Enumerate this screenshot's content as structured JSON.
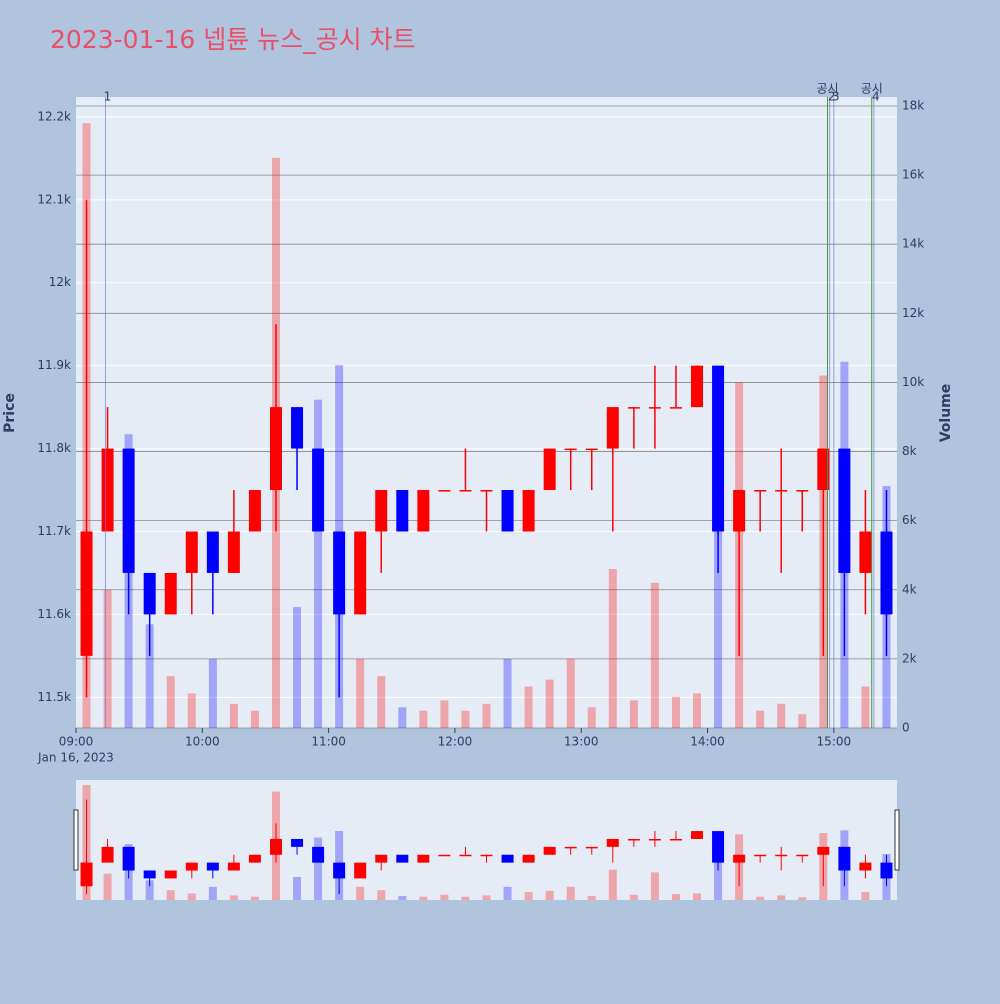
{
  "chart_data": {
    "type": "candlestick",
    "title": "2023-01-16 넵튠 뉴스_공시 차트",
    "x": [
      "2023-01-16 09:00",
      "2023-01-16 09:10",
      "2023-01-16 09:20",
      "2023-01-16 09:30",
      "2023-01-16 09:40",
      "2023-01-16 09:50",
      "2023-01-16 10:00",
      "2023-01-16 10:10",
      "2023-01-16 10:20",
      "2023-01-16 10:30",
      "2023-01-16 10:40",
      "2023-01-16 10:50",
      "2023-01-16 11:00",
      "2023-01-16 11:10",
      "2023-01-16 11:20",
      "2023-01-16 11:30",
      "2023-01-16 11:40",
      "2023-01-16 11:50",
      "2023-01-16 12:00",
      "2023-01-16 12:10",
      "2023-01-16 12:20",
      "2023-01-16 12:30",
      "2023-01-16 12:40",
      "2023-01-16 12:50",
      "2023-01-16 13:00",
      "2023-01-16 13:10",
      "2023-01-16 13:20",
      "2023-01-16 13:30",
      "2023-01-16 13:40",
      "2023-01-16 13:50",
      "2023-01-16 14:00",
      "2023-01-16 14:10",
      "2023-01-16 14:20",
      "2023-01-16 14:30",
      "2023-01-16 14:40",
      "2023-01-16 14:50",
      "2023-01-16 15:00",
      "2023-01-16 15:10",
      "2023-01-16 15:20"
    ],
    "open": [
      11550,
      11700,
      11800,
      11650,
      11600,
      11650,
      11700,
      11650,
      11700,
      11750,
      11850,
      11800,
      11700,
      11600,
      11700,
      11750,
      11700,
      11750,
      11750,
      11750,
      11750,
      11700,
      11750,
      11800,
      11800,
      11800,
      11850,
      11850,
      11850,
      11850,
      11900,
      11700,
      11750,
      11750,
      11750,
      11750,
      11800,
      11650,
      11700
    ],
    "high": [
      12100,
      11850,
      11800,
      11650,
      11650,
      11700,
      11700,
      11750,
      11750,
      11950,
      11850,
      11800,
      11700,
      11700,
      11750,
      11750,
      11750,
      11750,
      11800,
      11750,
      11750,
      11750,
      11800,
      11800,
      11800,
      11850,
      11850,
      11900,
      11900,
      11900,
      11900,
      11750,
      11750,
      11800,
      11750,
      11800,
      11800,
      11750,
      11750
    ],
    "low": [
      11500,
      11700,
      11600,
      11550,
      11600,
      11600,
      11600,
      11650,
      11700,
      11700,
      11750,
      11700,
      11500,
      11600,
      11650,
      11700,
      11700,
      11750,
      11750,
      11700,
      11700,
      11700,
      11750,
      11750,
      11750,
      11700,
      11800,
      11800,
      11850,
      11850,
      11650,
      11550,
      11700,
      11650,
      11700,
      11550,
      11550,
      11600,
      11550
    ],
    "close": [
      11700,
      11800,
      11650,
      11600,
      11650,
      11700,
      11650,
      11700,
      11750,
      11850,
      11800,
      11700,
      11600,
      11700,
      11750,
      11700,
      11750,
      11750,
      11750,
      11750,
      11700,
      11750,
      11800,
      11800,
      11800,
      11850,
      11850,
      11850,
      11850,
      11900,
      11700,
      11750,
      11750,
      11750,
      11750,
      11800,
      11650,
      11700,
      11600
    ],
    "volume": [
      17500,
      4000,
      8500,
      3000,
      1500,
      1000,
      2000,
      700,
      500,
      16500,
      3500,
      9500,
      10500,
      2000,
      1500,
      600,
      500,
      800,
      500,
      700,
      2000,
      1200,
      1400,
      2000,
      600,
      4600,
      800,
      4200,
      900,
      1000,
      10000,
      10000,
      500,
      700,
      400,
      10200,
      10600,
      1200,
      7000
    ],
    "up_color": "#ff0000",
    "down_color": "#0000ff",
    "xlim": [
      "2023-01-16 09:00",
      "2023-01-16 15:30"
    ],
    "xticks": [
      {
        "value": "2023-01-16 09:00",
        "label": "09:00"
      },
      {
        "value": "2023-01-16 10:00",
        "label": "10:00"
      },
      {
        "value": "2023-01-16 11:00",
        "label": "11:00"
      },
      {
        "value": "2023-01-16 12:00",
        "label": "12:00"
      },
      {
        "value": "2023-01-16 13:00",
        "label": "13:00"
      },
      {
        "value": "2023-01-16 14:00",
        "label": "14:00"
      },
      {
        "value": "2023-01-16 15:00",
        "label": "15:00"
      }
    ],
    "x_date_label": "Jan 16, 2023",
    "ylim": [
      11463,
      12224
    ],
    "yticks": [
      {
        "value": 11500,
        "label": "11.5k"
      },
      {
        "value": 11600,
        "label": "11.6k"
      },
      {
        "value": 11700,
        "label": "11.7k"
      },
      {
        "value": 11800,
        "label": "11.8k"
      },
      {
        "value": 11900,
        "label": "11.9k"
      },
      {
        "value": 12000,
        "label": "12k"
      },
      {
        "value": 12100,
        "label": "12.1k"
      },
      {
        "value": 12200,
        "label": "12.2k"
      }
    ],
    "y2lim": [
      0,
      18260
    ],
    "y2ticks": [
      0,
      {
        "value": 2000,
        "label": "2k"
      },
      {
        "value": 4000,
        "label": "4k"
      },
      {
        "value": 6000,
        "label": "6k"
      },
      {
        "value": 8000,
        "label": "8k"
      },
      {
        "value": 10000,
        "label": "10k"
      },
      {
        "value": 12000,
        "label": "12k"
      },
      {
        "value": 14000,
        "label": "14k"
      },
      {
        "value": 16000,
        "label": "16k"
      },
      {
        "value": 18000,
        "label": "18k"
      }
    ],
    "ylabel": "Price",
    "y2label": "Volume",
    "news": [
      {
        "x": "2023-01-16 09:14",
        "label": "1"
      },
      {
        "x": "2023-01-16 14:58",
        "label": "2"
      },
      {
        "x": "2023-01-16 15:00",
        "label": "3"
      },
      {
        "x": "2023-01-16 15:19",
        "label": "4"
      }
    ],
    "disclosures": [
      {
        "x": "2023-01-16 14:57",
        "label": "공시"
      },
      {
        "x": "2023-01-16 15:18",
        "label": "공시"
      }
    ]
  }
}
